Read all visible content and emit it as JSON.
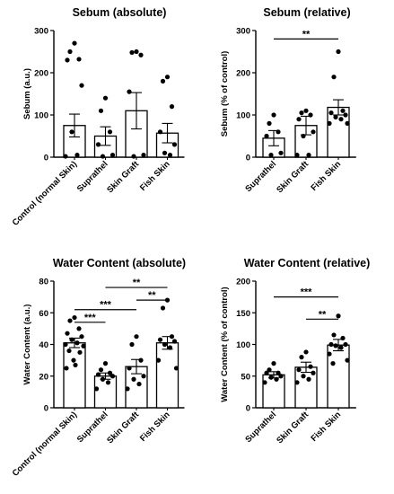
{
  "chart_data": [
    {
      "type": "bar",
      "title": "Sebum (absolute)",
      "ylabel": "Sebum (a.u.)",
      "xlabel": "",
      "ylim": [
        0,
        300
      ],
      "yticks": [
        0,
        100,
        200,
        300
      ],
      "categories": [
        "Control (normal Skin)",
        "Suprathel",
        "Skin Graft",
        "Fish Skin"
      ],
      "values": [
        75,
        50,
        110,
        57
      ],
      "errors": [
        27,
        22,
        43,
        23
      ],
      "points": [
        [
          270,
          250,
          232,
          230,
          170,
          60,
          5,
          2
        ],
        [
          140,
          110,
          60,
          30,
          5,
          2
        ],
        [
          250,
          248,
          242,
          155,
          5,
          2
        ],
        [
          190,
          180,
          120,
          60,
          30,
          10,
          5
        ]
      ],
      "significance": []
    },
    {
      "type": "bar",
      "title": "Sebum (relative)",
      "ylabel": "Sebum (% of control)",
      "xlabel": "",
      "ylim": [
        0,
        300
      ],
      "yticks": [
        0,
        100,
        200,
        300
      ],
      "categories": [
        "Suprathel",
        "Skin Graft",
        "Fish Skin"
      ],
      "values": [
        45,
        75,
        118
      ],
      "errors": [
        18,
        22,
        18
      ],
      "points": [
        [
          100,
          80,
          60,
          50,
          10,
          5
        ],
        [
          110,
          105,
          100,
          90,
          60,
          50,
          5,
          5
        ],
        [
          250,
          190,
          110,
          105,
          100,
          95,
          90,
          80,
          80
        ]
      ],
      "significance": [
        {
          "from": 0,
          "to": 2,
          "label": "**",
          "y": 280
        }
      ]
    },
    {
      "type": "bar",
      "title": "Water Content (absolute)",
      "ylabel": "Water Content (a.u.)",
      "xlabel": "",
      "ylim": [
        0,
        80
      ],
      "yticks": [
        0,
        20,
        40,
        60,
        80
      ],
      "categories": [
        "Control (normal Skin)",
        "Suprathel",
        "Skin Graft",
        "Fish Skin"
      ],
      "values": [
        41,
        20,
        26,
        41
      ],
      "errors": [
        3,
        2,
        4.5,
        4
      ],
      "points": [
        [
          57,
          55,
          50,
          47,
          45,
          43,
          41,
          40,
          39,
          36,
          35,
          30,
          27,
          25
        ],
        [
          28,
          24,
          22,
          21,
          20,
          18,
          16,
          12
        ],
        [
          45,
          40,
          30,
          25,
          20,
          18,
          15,
          12
        ],
        [
          68,
          63,
          45,
          43,
          42,
          40,
          38,
          30,
          25
        ]
      ],
      "significance": [
        {
          "from": 0,
          "to": 1,
          "label": "***",
          "y": 54
        },
        {
          "from": 0,
          "to": 2,
          "label": "***",
          "y": 62
        },
        {
          "from": 2,
          "to": 3,
          "label": "**",
          "y": 68
        },
        {
          "from": 1,
          "to": 3,
          "label": "**",
          "y": 76
        }
      ]
    },
    {
      "type": "bar",
      "title": "Water Content (relative)",
      "ylabel": "Water Content (% of control)",
      "xlabel": "",
      "ylim": [
        0,
        200
      ],
      "yticks": [
        0,
        50,
        100,
        150,
        200
      ],
      "categories": [
        "Suprathel",
        "Skin Graft",
        "Fish Skin"
      ],
      "values": [
        52,
        64,
        99
      ],
      "errors": [
        5,
        8,
        9
      ],
      "points": [
        [
          70,
          60,
          55,
          55,
          50,
          48,
          45,
          40
        ],
        [
          88,
          80,
          65,
          60,
          55,
          50,
          45,
          40
        ],
        [
          145,
          115,
          110,
          100,
          100,
          98,
          95,
          85,
          75,
          70
        ]
      ],
      "significance": [
        {
          "from": 0,
          "to": 2,
          "label": "***",
          "y": 175
        },
        {
          "from": 1,
          "to": 2,
          "label": "**",
          "y": 140
        }
      ]
    }
  ]
}
